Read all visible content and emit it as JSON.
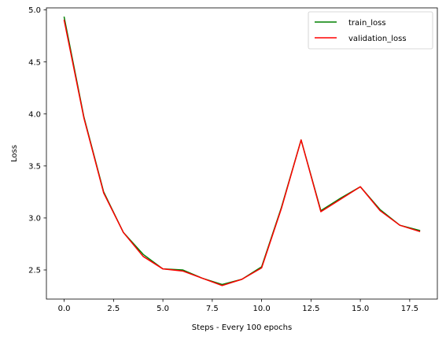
{
  "chart_data": {
    "type": "line",
    "title": "",
    "xlabel": "Steps - Every 100 epochs",
    "ylabel": "Loss",
    "xlim": [
      -0.9,
      18.9
    ],
    "ylim": [
      2.22,
      5.02
    ],
    "xticks": [
      0.0,
      2.5,
      5.0,
      7.5,
      10.0,
      12.5,
      15.0,
      17.5
    ],
    "xtick_labels": [
      "0.0",
      "2.5",
      "5.0",
      "7.5",
      "10.0",
      "12.5",
      "15.0",
      "17.5"
    ],
    "yticks": [
      2.5,
      3.0,
      3.5,
      4.0,
      4.5,
      5.0
    ],
    "ytick_labels": [
      "2.5",
      "3.0",
      "3.5",
      "4.0",
      "4.5",
      "5.0"
    ],
    "grid": false,
    "legend_position": "top-right",
    "x": [
      0,
      1,
      2,
      3,
      4,
      5,
      6,
      7,
      8,
      9,
      10,
      11,
      12,
      13,
      14,
      15,
      16,
      17,
      18
    ],
    "series": [
      {
        "name": "train_loss",
        "color": "#008000",
        "values": [
          4.93,
          3.97,
          3.25,
          2.86,
          2.65,
          2.51,
          2.5,
          2.42,
          2.36,
          2.41,
          2.53,
          3.1,
          3.75,
          3.07,
          3.19,
          3.3,
          3.08,
          2.93,
          2.88
        ]
      },
      {
        "name": "validation_loss",
        "color": "#ff0000",
        "values": [
          4.9,
          3.96,
          3.24,
          2.86,
          2.63,
          2.51,
          2.49,
          2.42,
          2.35,
          2.41,
          2.52,
          3.09,
          3.75,
          3.06,
          3.18,
          3.3,
          3.07,
          2.93,
          2.87
        ]
      }
    ]
  }
}
